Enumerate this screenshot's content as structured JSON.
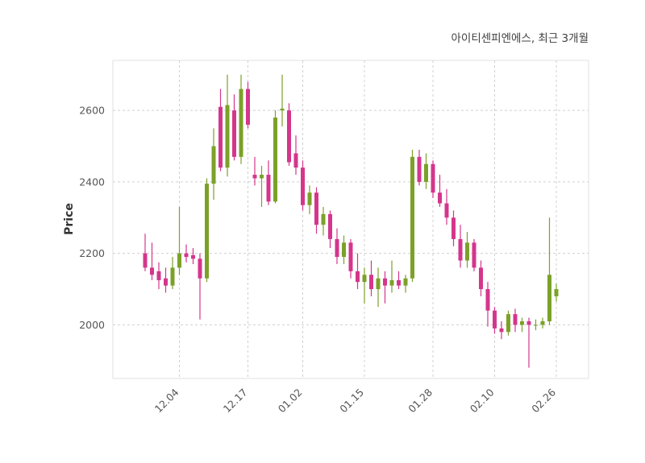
{
  "header": {
    "title": "아이티센피엔에스, 최근 3개월"
  },
  "chart_data": {
    "type": "candlestick",
    "title": "아이티센피엔에스, 최근 3개월",
    "xlabel": "",
    "ylabel": "Price",
    "ylim": [
      1850,
      2740
    ],
    "yticks": [
      2000,
      2200,
      2400,
      2600
    ],
    "xtick_labels": [
      "12.04",
      "12.17",
      "01.02",
      "01.15",
      "01.28",
      "02.10",
      "02.26"
    ],
    "xtick_indices": [
      5,
      15,
      23,
      32,
      42,
      51,
      60
    ],
    "grid": true,
    "legend": "none",
    "up_color": "#7ba129",
    "down_color": "#d4368c",
    "grid_color": "#d0d0d0",
    "ohlc_order": [
      "open",
      "high",
      "low",
      "close"
    ],
    "candles": [
      [
        2200,
        2255,
        2150,
        2160
      ],
      [
        2160,
        2230,
        2125,
        2140
      ],
      [
        2150,
        2175,
        2100,
        2125
      ],
      [
        2130,
        2160,
        2090,
        2110
      ],
      [
        2110,
        2190,
        2100,
        2160
      ],
      [
        2160,
        2330,
        2140,
        2200
      ],
      [
        2200,
        2225,
        2175,
        2190
      ],
      [
        2195,
        2215,
        2170,
        2185
      ],
      [
        2185,
        2200,
        2015,
        2130
      ],
      [
        2130,
        2410,
        2120,
        2395
      ],
      [
        2395,
        2550,
        2350,
        2500
      ],
      [
        2610,
        2660,
        2430,
        2440
      ],
      [
        2440,
        2700,
        2415,
        2615
      ],
      [
        2600,
        2645,
        2460,
        2470
      ],
      [
        2470,
        2700,
        2450,
        2660
      ],
      [
        2660,
        2680,
        2550,
        2560
      ],
      [
        2420,
        2470,
        2390,
        2410
      ],
      [
        2410,
        2445,
        2330,
        2420
      ],
      [
        2420,
        2460,
        2335,
        2345
      ],
      [
        2345,
        2600,
        2340,
        2580
      ],
      [
        2600,
        2700,
        2555,
        2605
      ],
      [
        2600,
        2620,
        2445,
        2455
      ],
      [
        2480,
        2530,
        2420,
        2440
      ],
      [
        2440,
        2460,
        2320,
        2335
      ],
      [
        2335,
        2390,
        2310,
        2370
      ],
      [
        2370,
        2385,
        2255,
        2280
      ],
      [
        2280,
        2330,
        2250,
        2310
      ],
      [
        2310,
        2320,
        2215,
        2240
      ],
      [
        2240,
        2270,
        2170,
        2190
      ],
      [
        2190,
        2250,
        2170,
        2230
      ],
      [
        2230,
        2240,
        2130,
        2150
      ],
      [
        2150,
        2200,
        2100,
        2120
      ],
      [
        2120,
        2160,
        2060,
        2140
      ],
      [
        2140,
        2180,
        2080,
        2100
      ],
      [
        2100,
        2160,
        2050,
        2130
      ],
      [
        2130,
        2150,
        2060,
        2110
      ],
      [
        2110,
        2180,
        2090,
        2125
      ],
      [
        2125,
        2150,
        2100,
        2110
      ],
      [
        2110,
        2140,
        2090,
        2130
      ],
      [
        2130,
        2490,
        2120,
        2470
      ],
      [
        2470,
        2490,
        2390,
        2400
      ],
      [
        2400,
        2480,
        2380,
        2450
      ],
      [
        2450,
        2460,
        2355,
        2370
      ],
      [
        2370,
        2420,
        2330,
        2340
      ],
      [
        2340,
        2380,
        2280,
        2300
      ],
      [
        2300,
        2320,
        2220,
        2240
      ],
      [
        2240,
        2280,
        2160,
        2180
      ],
      [
        2180,
        2260,
        2160,
        2230
      ],
      [
        2230,
        2240,
        2150,
        2160
      ],
      [
        2160,
        2180,
        2080,
        2100
      ],
      [
        2100,
        2120,
        1995,
        2040
      ],
      [
        2040,
        2050,
        1975,
        1990
      ],
      [
        1990,
        2010,
        1960,
        1980
      ],
      [
        1980,
        2040,
        1970,
        2030
      ],
      [
        2030,
        2045,
        1980,
        2000
      ],
      [
        2000,
        2020,
        1980,
        2010
      ],
      [
        2010,
        2020,
        1880,
        2000
      ],
      [
        2000,
        2015,
        1985,
        2000
      ],
      [
        2000,
        2020,
        1990,
        2010
      ],
      [
        2010,
        2300,
        2000,
        2140
      ],
      [
        2080,
        2115,
        2065,
        2100
      ]
    ]
  }
}
